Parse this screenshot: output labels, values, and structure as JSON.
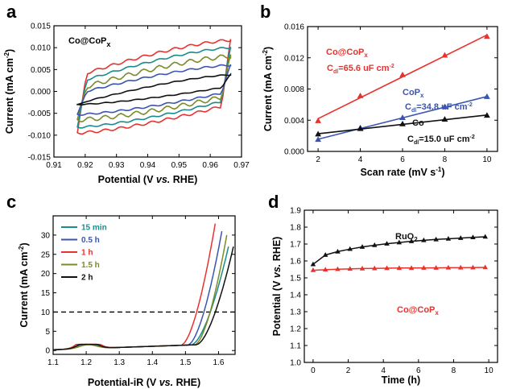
{
  "figure": {
    "panels": [
      "a",
      "b",
      "c",
      "d"
    ]
  },
  "chart_data": [
    {
      "panel": "a",
      "type": "line",
      "annotation": "Co@CoP",
      "annotation_sub": "x",
      "xlabel_parts": [
        "Potential (V ",
        "vs.",
        " RHE)"
      ],
      "ylabel": "Current (mA cm",
      "ylabel_sup": "-2",
      "ylabel_end": ")",
      "xlim": [
        0.91,
        0.97
      ],
      "ylim": [
        -0.015,
        0.015
      ],
      "xticks": [
        "0.91",
        "0.92",
        "0.93",
        "0.94",
        "0.95",
        "0.96",
        "0.97"
      ],
      "yticks": [
        "-0.015",
        "-0.010",
        "-0.005",
        "0.000",
        "0.005",
        "0.010",
        "0.015"
      ],
      "series": [
        {
          "color": "#e8322e",
          "x_start": 0.9175,
          "x_end": 0.9665,
          "upper": [
            0.0035,
            0.0117
          ],
          "lower": [
            -0.0095,
            -0.0029
          ],
          "wave": 0.0003
        },
        {
          "color": "#1a8c8c",
          "x_start": 0.9175,
          "x_end": 0.9665,
          "upper": [
            0.002,
            0.01
          ],
          "lower": [
            -0.0082,
            -0.0018
          ],
          "wave": 0.0002
        },
        {
          "color": "#7b8b2a",
          "x_start": 0.9175,
          "x_end": 0.9665,
          "upper": [
            0.0005,
            0.008
          ],
          "lower": [
            -0.0065,
            -0.0009
          ],
          "wave": 0.0005
        },
        {
          "color": "#3a55b0",
          "x_start": 0.9175,
          "x_end": 0.9665,
          "upper": [
            -0.0005,
            0.006
          ],
          "lower": [
            -0.0053,
            0.0
          ],
          "wave": 0.0002
        },
        {
          "color": "#111111",
          "x_start": 0.9175,
          "x_end": 0.9665,
          "upper": [
            -0.0028,
            0.0038
          ],
          "lower": [
            -0.003,
            0.0012
          ],
          "wave": 0.0001
        }
      ]
    },
    {
      "panel": "b",
      "type": "scatter",
      "xlabel": "Scan rate (mV s",
      "xlabel_sup": "-1",
      "xlabel_end": ")",
      "ylabel": "Current (mA cm",
      "ylabel_sup": "-2",
      "ylabel_end": ")",
      "xlim": [
        1.5,
        10.5
      ],
      "ylim": [
        0,
        0.016
      ],
      "xticks": [
        "2",
        "4",
        "6",
        "8",
        "10"
      ],
      "yticks": [
        "0.000",
        "0.004",
        "0.008",
        "0.012",
        "0.016"
      ],
      "x": [
        2,
        4,
        6,
        8,
        10
      ],
      "series": [
        {
          "name": "Co@CoP",
          "name_sub": "x",
          "label": "C",
          "label_sub": "dl",
          "label_val": "=65.6 uF cm",
          "label_sup": "-2",
          "color": "#e8322e",
          "marker": "triangle",
          "values": [
            0.0039,
            0.0071,
            0.0098,
            0.0123,
            0.0147
          ]
        },
        {
          "name": "CoP",
          "name_sub": "x",
          "label": "C",
          "label_sub": "dl",
          "label_val": "=34.8 uF cm",
          "label_sup": "-2",
          "color": "#3a55b0",
          "marker": "triangle",
          "values": [
            0.0015,
            0.003,
            0.0043,
            0.0057,
            0.007
          ]
        },
        {
          "name": "Co",
          "name_sub": "",
          "label": "C",
          "label_sub": "dl",
          "label_val": "=15.0 uF cm",
          "label_sup": "-2",
          "color": "#111111",
          "marker": "triangle",
          "values": [
            0.0022,
            0.0029,
            0.0035,
            0.0041,
            0.0046
          ]
        }
      ]
    },
    {
      "panel": "c",
      "type": "line",
      "xlabel_parts": [
        "Potential-iR (V ",
        "vs.",
        " RHE)"
      ],
      "ylabel": "Current (mA cm",
      "ylabel_sup": "-2",
      "ylabel_end": ")",
      "xlim": [
        1.1,
        1.65
      ],
      "ylim": [
        -1,
        35
      ],
      "xticks": [
        "1.1",
        "1.2",
        "1.3",
        "1.4",
        "1.5",
        "1.6"
      ],
      "yticks": [
        "0",
        "5",
        "10",
        "15",
        "20",
        "25",
        "30"
      ],
      "reference_line": 10,
      "series": [
        {
          "name": "15 min",
          "color": "#1a8c8c",
          "bump": 1.2,
          "onset": 1.52,
          "end_x": 1.63,
          "end_y": 27
        },
        {
          "name": "0.5 h",
          "color": "#3a55b0",
          "bump": 1.8,
          "onset": 1.51,
          "end_x": 1.61,
          "end_y": 31
        },
        {
          "name": "1 h",
          "color": "#e8322e",
          "bump": 3.3,
          "onset": 1.49,
          "end_x": 1.59,
          "end_y": 33
        },
        {
          "name": "1.5 h",
          "color": "#7b8b2a",
          "bump": 1.0,
          "onset": 1.53,
          "end_x": 1.625,
          "end_y": 30
        },
        {
          "name": "2 h",
          "color": "#111111",
          "bump": 2.0,
          "onset": 1.535,
          "end_x": 1.645,
          "end_y": 27
        }
      ]
    },
    {
      "panel": "d",
      "type": "line",
      "xlabel": "Time (h)",
      "ylabel_parts": [
        "Potential (V ",
        "vs.",
        " RHE)"
      ],
      "xlim": [
        -0.5,
        10.5
      ],
      "ylim": [
        1.0,
        1.9
      ],
      "xticks": [
        "0",
        "2",
        "4",
        "6",
        "8",
        "10"
      ],
      "yticks": [
        "1.0",
        "1.1",
        "1.2",
        "1.3",
        "1.4",
        "1.5",
        "1.6",
        "1.7",
        "1.8",
        "1.9"
      ],
      "series": [
        {
          "name": "RuO",
          "name_sub": "2",
          "color": "#111111",
          "marker": "triangle",
          "x": [
            0,
            0.7,
            1.4,
            2.1,
            2.8,
            3.5,
            4.2,
            4.9,
            5.6,
            6.3,
            7.0,
            7.7,
            8.4,
            9.1,
            9.8
          ],
          "values": [
            1.58,
            1.635,
            1.655,
            1.67,
            1.683,
            1.693,
            1.702,
            1.709,
            1.716,
            1.722,
            1.727,
            1.731,
            1.735,
            1.739,
            1.743
          ]
        },
        {
          "name": "Co@CoP",
          "name_sub": "x",
          "color": "#e8322e",
          "marker": "triangle",
          "x": [
            0,
            0.7,
            1.4,
            2.1,
            2.8,
            3.5,
            4.2,
            4.9,
            5.6,
            6.3,
            7.0,
            7.7,
            8.4,
            9.1,
            9.8
          ],
          "values": [
            1.545,
            1.548,
            1.551,
            1.553,
            1.555,
            1.556,
            1.557,
            1.558,
            1.558,
            1.559,
            1.559,
            1.56,
            1.56,
            1.561,
            1.562
          ]
        }
      ]
    }
  ]
}
